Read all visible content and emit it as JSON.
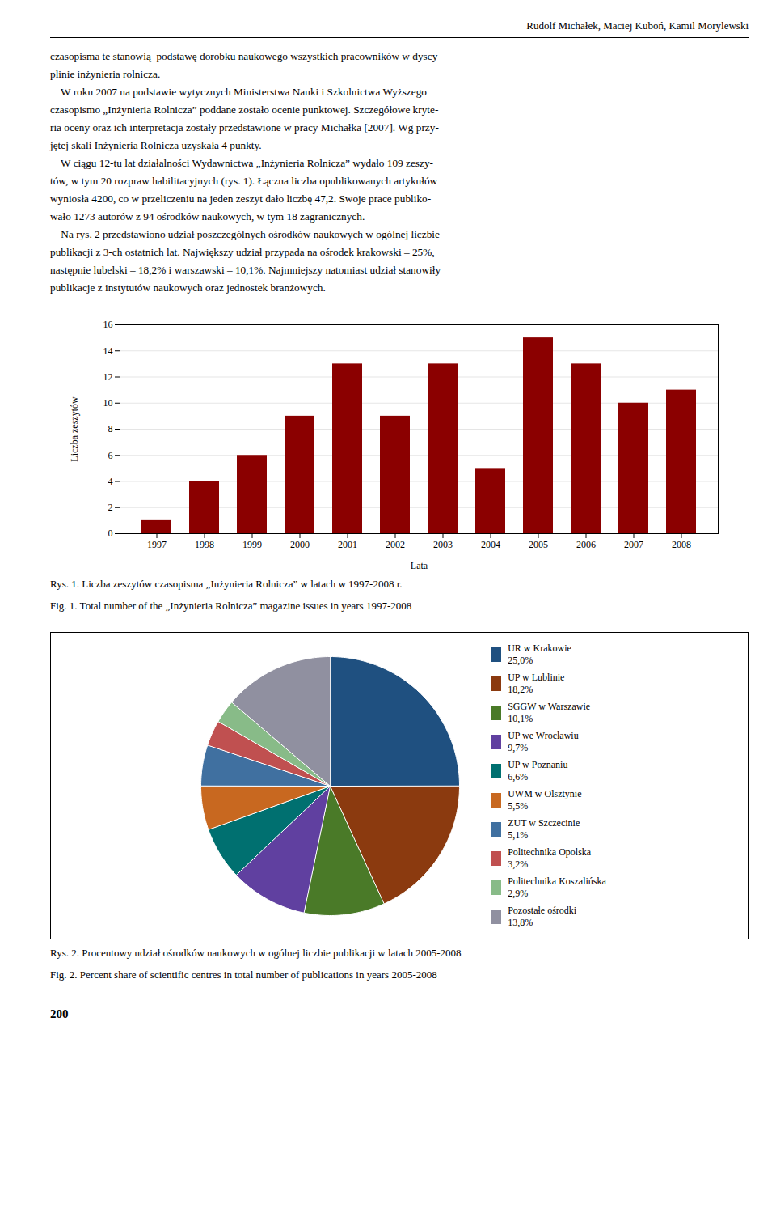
{
  "chart_data": [
    {
      "type": "bar",
      "title": "Rys. 1. Liczba zeszytów czasopisma „Inżynieria Rolnicza” w latach w 1997-2008 r.",
      "subtitle": "Fig. 1. Total number of the „Inżynieria Rolnicza” magazine issues in years 1997-2008",
      "annotations": [
        "Rudolf Michałek, Maciej Kuboń, Kamil Morylewski",
        "czasopisma te stanowią  podstawę dorobku naukowego wszystkich pracowników w dyscy-",
        "plinie inżynieria rolnicza.",
        "    W roku 2007 na podstawie wytycznych Ministerstwa Nauki i Szkolnictwa Wyższego",
        "czasopismo „Inżynieria Rolnicza” poddane zostało ocenie punktowej. Szczegółowe kryte-",
        "ria oceny oraz ich interpretacja zostały przedstawione w pracy Michałka [2007]. Wg przy-",
        "jętej skali Inżynieria Rolnicza uzyskała 4 punkty.",
        "    W ciągu 12-tu lat działalności Wydawnictwa „Inżynieria Rolnicza” wydało 109 zeszy-",
        "tów, w tym 20 rozpraw habilitacyjnych (rys. 1). Łączna liczba opublikowanych artykułów",
        "wyniosła 4200, co w przeliczeniu na jeden zeszyt dało liczbę 47,2. Swoje prace publiko-",
        "wało 1273 autorów z 94 ośrodków naukowych, w tym 18 zagranicznych.",
        "    Na rys. 2 przedstawiono udział poszczególnych ośrodków naukowych w ogólnej liczbie",
        "publikacji z 3-ch ostatnich lat. Największy udział przypada na ośrodek krakowski – 25%,",
        "następnie lubelski – 18,2% i warszawski – 10,1%. Najmniejszy natomiast udział stanowiły",
        "publikacje z instytutów naukowych oraz jednostek branżowych."
      ],
      "categories": [
        "1997",
        "1998",
        "1999",
        "2000",
        "2001",
        "2002",
        "2003",
        "2004",
        "2005",
        "2006",
        "2007",
        "2008"
      ],
      "values": [
        1,
        4,
        6,
        9,
        13,
        9,
        13,
        5,
        15,
        13,
        10,
        11
      ],
      "color": "#8B0000",
      "xlabel": "Lata",
      "ylabel": "Liczba zeszytów",
      "ylim": [
        0,
        16
      ],
      "yticks": [
        0,
        2,
        4,
        6,
        8,
        10,
        12,
        14,
        16
      ],
      "grid": true
    },
    {
      "type": "pie",
      "title": "Rys. 2. Procentowy udział ośrodków naukowych w ogólnej liczbie publikacji w latach 2005-2008",
      "subtitle": "Fig. 2. Percent share of scientific centres in total number of publications in years 2005-2008",
      "annotations": [
        "200"
      ],
      "categories": [
        "UR w Krakowie",
        "UP w Lublinie",
        "SGGW w Warszawie",
        "UP we Wrocławiu",
        "UP w Poznaniu",
        "UWM w Olsztynie",
        "ZUT w Szczecinie",
        "Politechnika Opolska",
        "Politechnika Koszalińska",
        "Pozostałe ośrodki"
      ],
      "values": [
        25.0,
        18.2,
        10.1,
        9.7,
        6.6,
        5.5,
        5.1,
        3.2,
        2.9,
        13.8
      ],
      "value_labels": [
        "25,0%",
        "18,2%",
        "10,1%",
        "9,7%",
        "6,6%",
        "5,5%",
        "5,1%",
        "3,2%",
        "2,9%",
        "13,8%"
      ],
      "colors": [
        "#1F5080",
        "#8B3A0F",
        "#4A7A28",
        "#6040A0",
        "#007070",
        "#C86820",
        "#4070A0",
        "#C05050",
        "#88BB88",
        "#9090A0"
      ],
      "legend": "right"
    }
  ]
}
